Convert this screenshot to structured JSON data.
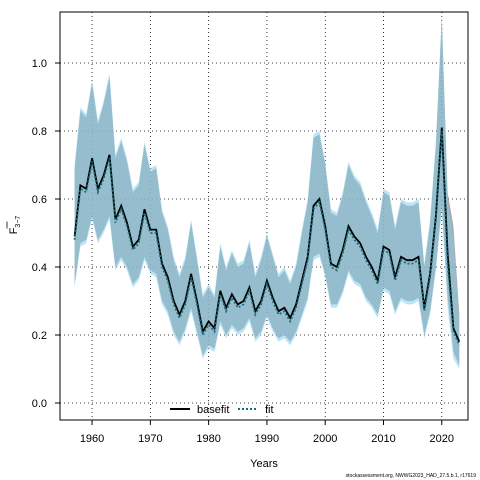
{
  "chart_data": {
    "type": "line",
    "xlabel": "Years",
    "ylabel": "F",
    "ylabel_sub": "3−7",
    "xlim": [
      1954.5,
      2024.5
    ],
    "ylim": [
      -0.05,
      1.15
    ],
    "x_ticks": [
      1960,
      1970,
      1980,
      1990,
      2000,
      2010,
      2020
    ],
    "x_tick_labels": [
      "1960",
      "1970",
      "1980",
      "1990",
      "2000",
      "2010",
      "2020"
    ],
    "y_ticks": [
      0.0,
      0.2,
      0.4,
      0.6,
      0.8,
      1.0
    ],
    "y_tick_labels": [
      "0.0",
      "0.2",
      "0.4",
      "0.6",
      "0.8",
      "1.0"
    ],
    "grid": true,
    "legend_position": "bottom-center",
    "credit": "stockassessment.org, NWWG2023_HAD_27.5.b.1, r17619",
    "x": [
      1957,
      1958,
      1959,
      1960,
      1961,
      1962,
      1963,
      1964,
      1965,
      1966,
      1967,
      1968,
      1969,
      1970,
      1971,
      1972,
      1973,
      1974,
      1975,
      1976,
      1977,
      1978,
      1979,
      1980,
      1981,
      1982,
      1983,
      1984,
      1985,
      1986,
      1987,
      1988,
      1989,
      1990,
      1991,
      1992,
      1993,
      1994,
      1995,
      1996,
      1997,
      1998,
      1999,
      2000,
      2001,
      2002,
      2003,
      2004,
      2005,
      2006,
      2007,
      2008,
      2009,
      2010,
      2011,
      2012,
      2013,
      2014,
      2015,
      2016,
      2017,
      2018,
      2019,
      2020,
      2021,
      2022,
      2023
    ],
    "series": [
      {
        "name": "basefit",
        "color": "#000000",
        "dash": "solid",
        "band_color": "#8c8c8c",
        "values": [
          0.49,
          0.64,
          0.63,
          0.72,
          0.63,
          0.67,
          0.73,
          0.54,
          0.58,
          0.53,
          0.46,
          0.48,
          0.57,
          0.51,
          0.51,
          0.41,
          0.37,
          0.3,
          0.26,
          0.3,
          0.38,
          0.3,
          0.21,
          0.24,
          0.22,
          0.33,
          0.28,
          0.32,
          0.29,
          0.3,
          0.34,
          0.27,
          0.3,
          0.36,
          0.31,
          0.27,
          0.28,
          0.25,
          0.29,
          0.36,
          0.43,
          0.58,
          0.6,
          0.52,
          0.41,
          0.4,
          0.45,
          0.52,
          0.49,
          0.47,
          0.43,
          0.4,
          0.36,
          0.46,
          0.45,
          0.37,
          0.43,
          0.42,
          0.42,
          0.43,
          0.28,
          0.38,
          0.55,
          0.81,
          0.44,
          0.22,
          0.18
        ],
        "lower": [
          0.35,
          0.47,
          0.48,
          0.55,
          0.48,
          0.51,
          0.55,
          0.4,
          0.43,
          0.4,
          0.35,
          0.37,
          0.43,
          0.39,
          0.38,
          0.3,
          0.27,
          0.21,
          0.18,
          0.22,
          0.28,
          0.21,
          0.14,
          0.17,
          0.16,
          0.24,
          0.2,
          0.23,
          0.21,
          0.22,
          0.25,
          0.19,
          0.21,
          0.26,
          0.22,
          0.19,
          0.2,
          0.18,
          0.21,
          0.26,
          0.31,
          0.43,
          0.44,
          0.38,
          0.29,
          0.29,
          0.33,
          0.39,
          0.36,
          0.35,
          0.31,
          0.29,
          0.26,
          0.34,
          0.33,
          0.27,
          0.31,
          0.3,
          0.3,
          0.31,
          0.2,
          0.27,
          0.4,
          0.58,
          0.31,
          0.15,
          0.11
        ],
        "upper": [
          0.69,
          0.86,
          0.84,
          0.94,
          0.82,
          0.88,
          0.96,
          0.72,
          0.77,
          0.71,
          0.62,
          0.64,
          0.76,
          0.68,
          0.69,
          0.56,
          0.51,
          0.42,
          0.37,
          0.42,
          0.53,
          0.42,
          0.31,
          0.34,
          0.31,
          0.46,
          0.39,
          0.44,
          0.4,
          0.41,
          0.47,
          0.37,
          0.42,
          0.49,
          0.43,
          0.37,
          0.39,
          0.35,
          0.4,
          0.5,
          0.59,
          0.78,
          0.79,
          0.7,
          0.56,
          0.55,
          0.61,
          0.7,
          0.66,
          0.64,
          0.59,
          0.55,
          0.5,
          0.62,
          0.61,
          0.51,
          0.59,
          0.58,
          0.58,
          0.59,
          0.4,
          0.53,
          0.76,
          1.13,
          0.62,
          0.52,
          0.26
        ]
      },
      {
        "name": "fit",
        "color": "#1a6e7a",
        "dash": "dotted",
        "band_color": "#87ceeb",
        "values": [
          0.48,
          0.63,
          0.62,
          0.71,
          0.62,
          0.66,
          0.72,
          0.53,
          0.57,
          0.52,
          0.45,
          0.47,
          0.56,
          0.5,
          0.5,
          0.4,
          0.36,
          0.29,
          0.25,
          0.29,
          0.37,
          0.29,
          0.2,
          0.23,
          0.21,
          0.32,
          0.27,
          0.31,
          0.28,
          0.29,
          0.33,
          0.26,
          0.29,
          0.35,
          0.3,
          0.26,
          0.27,
          0.24,
          0.28,
          0.35,
          0.42,
          0.57,
          0.59,
          0.51,
          0.4,
          0.39,
          0.44,
          0.51,
          0.48,
          0.46,
          0.42,
          0.39,
          0.35,
          0.45,
          0.44,
          0.36,
          0.42,
          0.41,
          0.41,
          0.42,
          0.27,
          0.37,
          0.54,
          0.8,
          0.41,
          0.21,
          0.17
        ],
        "lower": [
          0.34,
          0.46,
          0.47,
          0.54,
          0.47,
          0.5,
          0.54,
          0.39,
          0.42,
          0.39,
          0.34,
          0.36,
          0.42,
          0.38,
          0.37,
          0.29,
          0.26,
          0.2,
          0.17,
          0.21,
          0.27,
          0.2,
          0.13,
          0.16,
          0.15,
          0.23,
          0.19,
          0.22,
          0.2,
          0.21,
          0.24,
          0.18,
          0.2,
          0.25,
          0.21,
          0.18,
          0.19,
          0.17,
          0.2,
          0.25,
          0.3,
          0.42,
          0.43,
          0.37,
          0.28,
          0.28,
          0.32,
          0.38,
          0.35,
          0.34,
          0.3,
          0.28,
          0.25,
          0.33,
          0.32,
          0.26,
          0.3,
          0.29,
          0.29,
          0.3,
          0.19,
          0.26,
          0.39,
          0.57,
          0.28,
          0.13,
          0.1
        ],
        "upper": [
          0.7,
          0.87,
          0.85,
          0.95,
          0.83,
          0.89,
          0.97,
          0.73,
          0.78,
          0.72,
          0.63,
          0.65,
          0.77,
          0.69,
          0.7,
          0.57,
          0.52,
          0.43,
          0.38,
          0.43,
          0.54,
          0.43,
          0.32,
          0.35,
          0.32,
          0.47,
          0.4,
          0.45,
          0.41,
          0.42,
          0.48,
          0.38,
          0.43,
          0.5,
          0.44,
          0.38,
          0.4,
          0.36,
          0.41,
          0.51,
          0.6,
          0.79,
          0.8,
          0.71,
          0.57,
          0.56,
          0.62,
          0.71,
          0.67,
          0.65,
          0.6,
          0.56,
          0.51,
          0.63,
          0.62,
          0.52,
          0.6,
          0.59,
          0.59,
          0.6,
          0.41,
          0.54,
          0.77,
          1.14,
          0.6,
          0.48,
          0.24
        ]
      }
    ]
  }
}
